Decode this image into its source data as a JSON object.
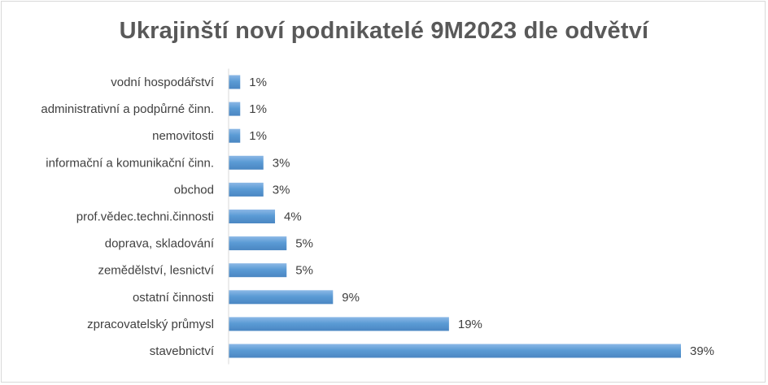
{
  "chart_data": {
    "type": "bar",
    "orientation": "horizontal",
    "title": "Ukrajinští noví podnikatelé 9M2023 dle odvětví",
    "categories": [
      "vodní hospodářství",
      "administrativní a podpůrné činn.",
      "nemovitosti",
      "informační a komunikační činn.",
      "obchod",
      "prof.vědec.techni.činnosti",
      "doprava, skladování",
      "zemědělství, lesnictví",
      "ostatní činnosti",
      "zpracovatelský průmysl",
      "stavebnictví"
    ],
    "values": [
      1,
      1,
      1,
      3,
      3,
      4,
      5,
      5,
      9,
      19,
      39
    ],
    "value_labels": [
      "1%",
      "1%",
      "1%",
      "3%",
      "3%",
      "4%",
      "5%",
      "5%",
      "9%",
      "19%",
      "39%"
    ],
    "unit": "%",
    "xlim": [
      0,
      39
    ],
    "grid": false,
    "legend": "none",
    "bar_color": "#5b9bd5"
  }
}
